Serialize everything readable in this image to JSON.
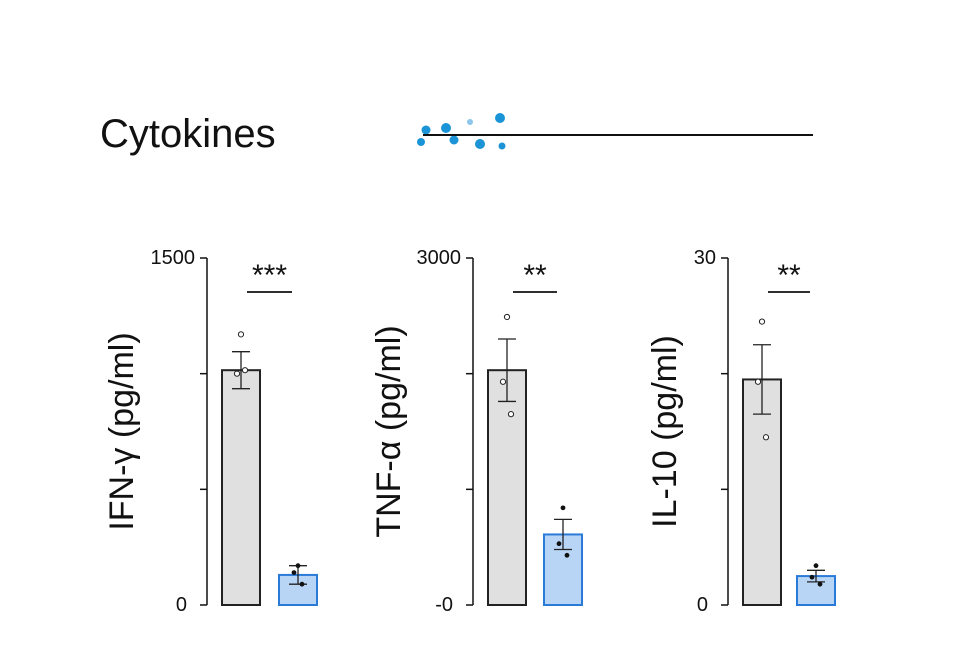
{
  "header": {
    "title": "Cytokines",
    "dots_icon": "cytokine-dots-icon"
  },
  "colors": {
    "control_fill": "#e0e0e0",
    "control_stroke": "#222222",
    "treated_fill": "#b8d5f5",
    "treated_stroke": "#2a7ad8",
    "dots": "#1a94d6"
  },
  "chart_data": [
    {
      "type": "bar",
      "ylabel": "IFN-γ (pg/ml)",
      "ylim": [
        0,
        1500
      ],
      "ytick_labels": [
        "1500",
        "0"
      ],
      "yticks": [
        0,
        500,
        1000,
        1500
      ],
      "significance": "***",
      "series": [
        {
          "values": [
            1015
          ],
          "sem": 80,
          "points": [
            1170,
            1000,
            1015
          ]
        },
        {
          "values": [
            130
          ],
          "sem": 40,
          "points": [
            170,
            140,
            90
          ]
        }
      ]
    },
    {
      "type": "bar",
      "ylabel": "TNF-α (pg/ml)",
      "ylim": [
        0,
        3000
      ],
      "ytick_labels": [
        "3000",
        "-0"
      ],
      "yticks": [
        0,
        1000,
        2000,
        3000
      ],
      "significance": "**",
      "series": [
        {
          "values": [
            2030
          ],
          "sem": 270,
          "points": [
            2490,
            1930,
            1650
          ]
        },
        {
          "values": [
            610
          ],
          "sem": 130,
          "points": [
            840,
            530,
            430
          ]
        }
      ]
    },
    {
      "type": "bar",
      "ylabel": "IL-10 (pg/ml)",
      "ylim": [
        0,
        30
      ],
      "ytick_labels": [
        "30",
        "0"
      ],
      "yticks": [
        0,
        10,
        20,
        30
      ],
      "significance": "**",
      "series": [
        {
          "values": [
            19.5
          ],
          "sem": 3,
          "points": [
            24.5,
            19.3,
            14.5
          ]
        },
        {
          "values": [
            2.5
          ],
          "sem": 0.5,
          "points": [
            3.4,
            2.4,
            1.8
          ]
        }
      ]
    }
  ]
}
